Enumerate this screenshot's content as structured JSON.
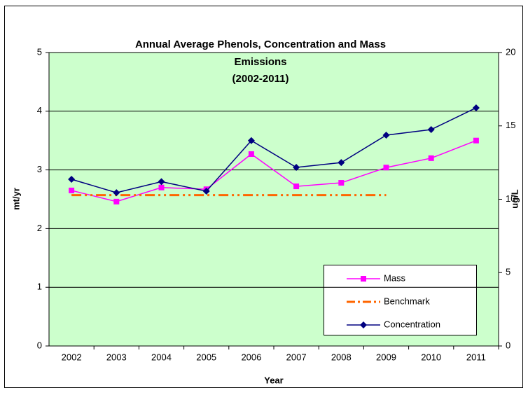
{
  "chart_data": {
    "type": "line",
    "title": [
      "Annual Average Phenols, Concentration and Mass",
      "Emissions",
      "(2002-2011)"
    ],
    "x_label": "Year",
    "y_label": "mt/yr",
    "y2_label": "ug/L",
    "categories": [
      "2002",
      "2003",
      "2004",
      "2005",
      "2006",
      "2007",
      "2008",
      "2009",
      "2010",
      "2011"
    ],
    "series": [
      {
        "name": "Mass",
        "color": "#ff00ff",
        "marker": "square",
        "values": [
          2.65,
          2.46,
          2.7,
          2.67,
          3.27,
          2.72,
          2.78,
          3.04,
          3.2,
          3.5
        ]
      },
      {
        "name": "Benchmark",
        "color": "#ff6600",
        "marker": "none",
        "dash": "dash-dot-dot",
        "values": [
          2.57,
          2.57,
          2.57,
          2.57,
          2.57,
          2.57,
          2.57,
          2.57,
          null,
          null
        ]
      },
      {
        "name": "Concentration",
        "color": "#000080",
        "marker": "diamond",
        "axis": "y2",
        "values": [
          11.36,
          10.45,
          11.2,
          10.55,
          14.0,
          12.17,
          12.5,
          14.37,
          14.75,
          16.23
        ]
      }
    ],
    "ylim": [
      0,
      5
    ],
    "yticks": [
      0,
      1,
      2,
      3,
      4,
      5
    ],
    "y2lim": [
      0,
      20
    ],
    "y2ticks": [
      0,
      5,
      10,
      15,
      20
    ],
    "grid": true,
    "legend": "bottom-right",
    "plot_background": "#ccffcc"
  }
}
